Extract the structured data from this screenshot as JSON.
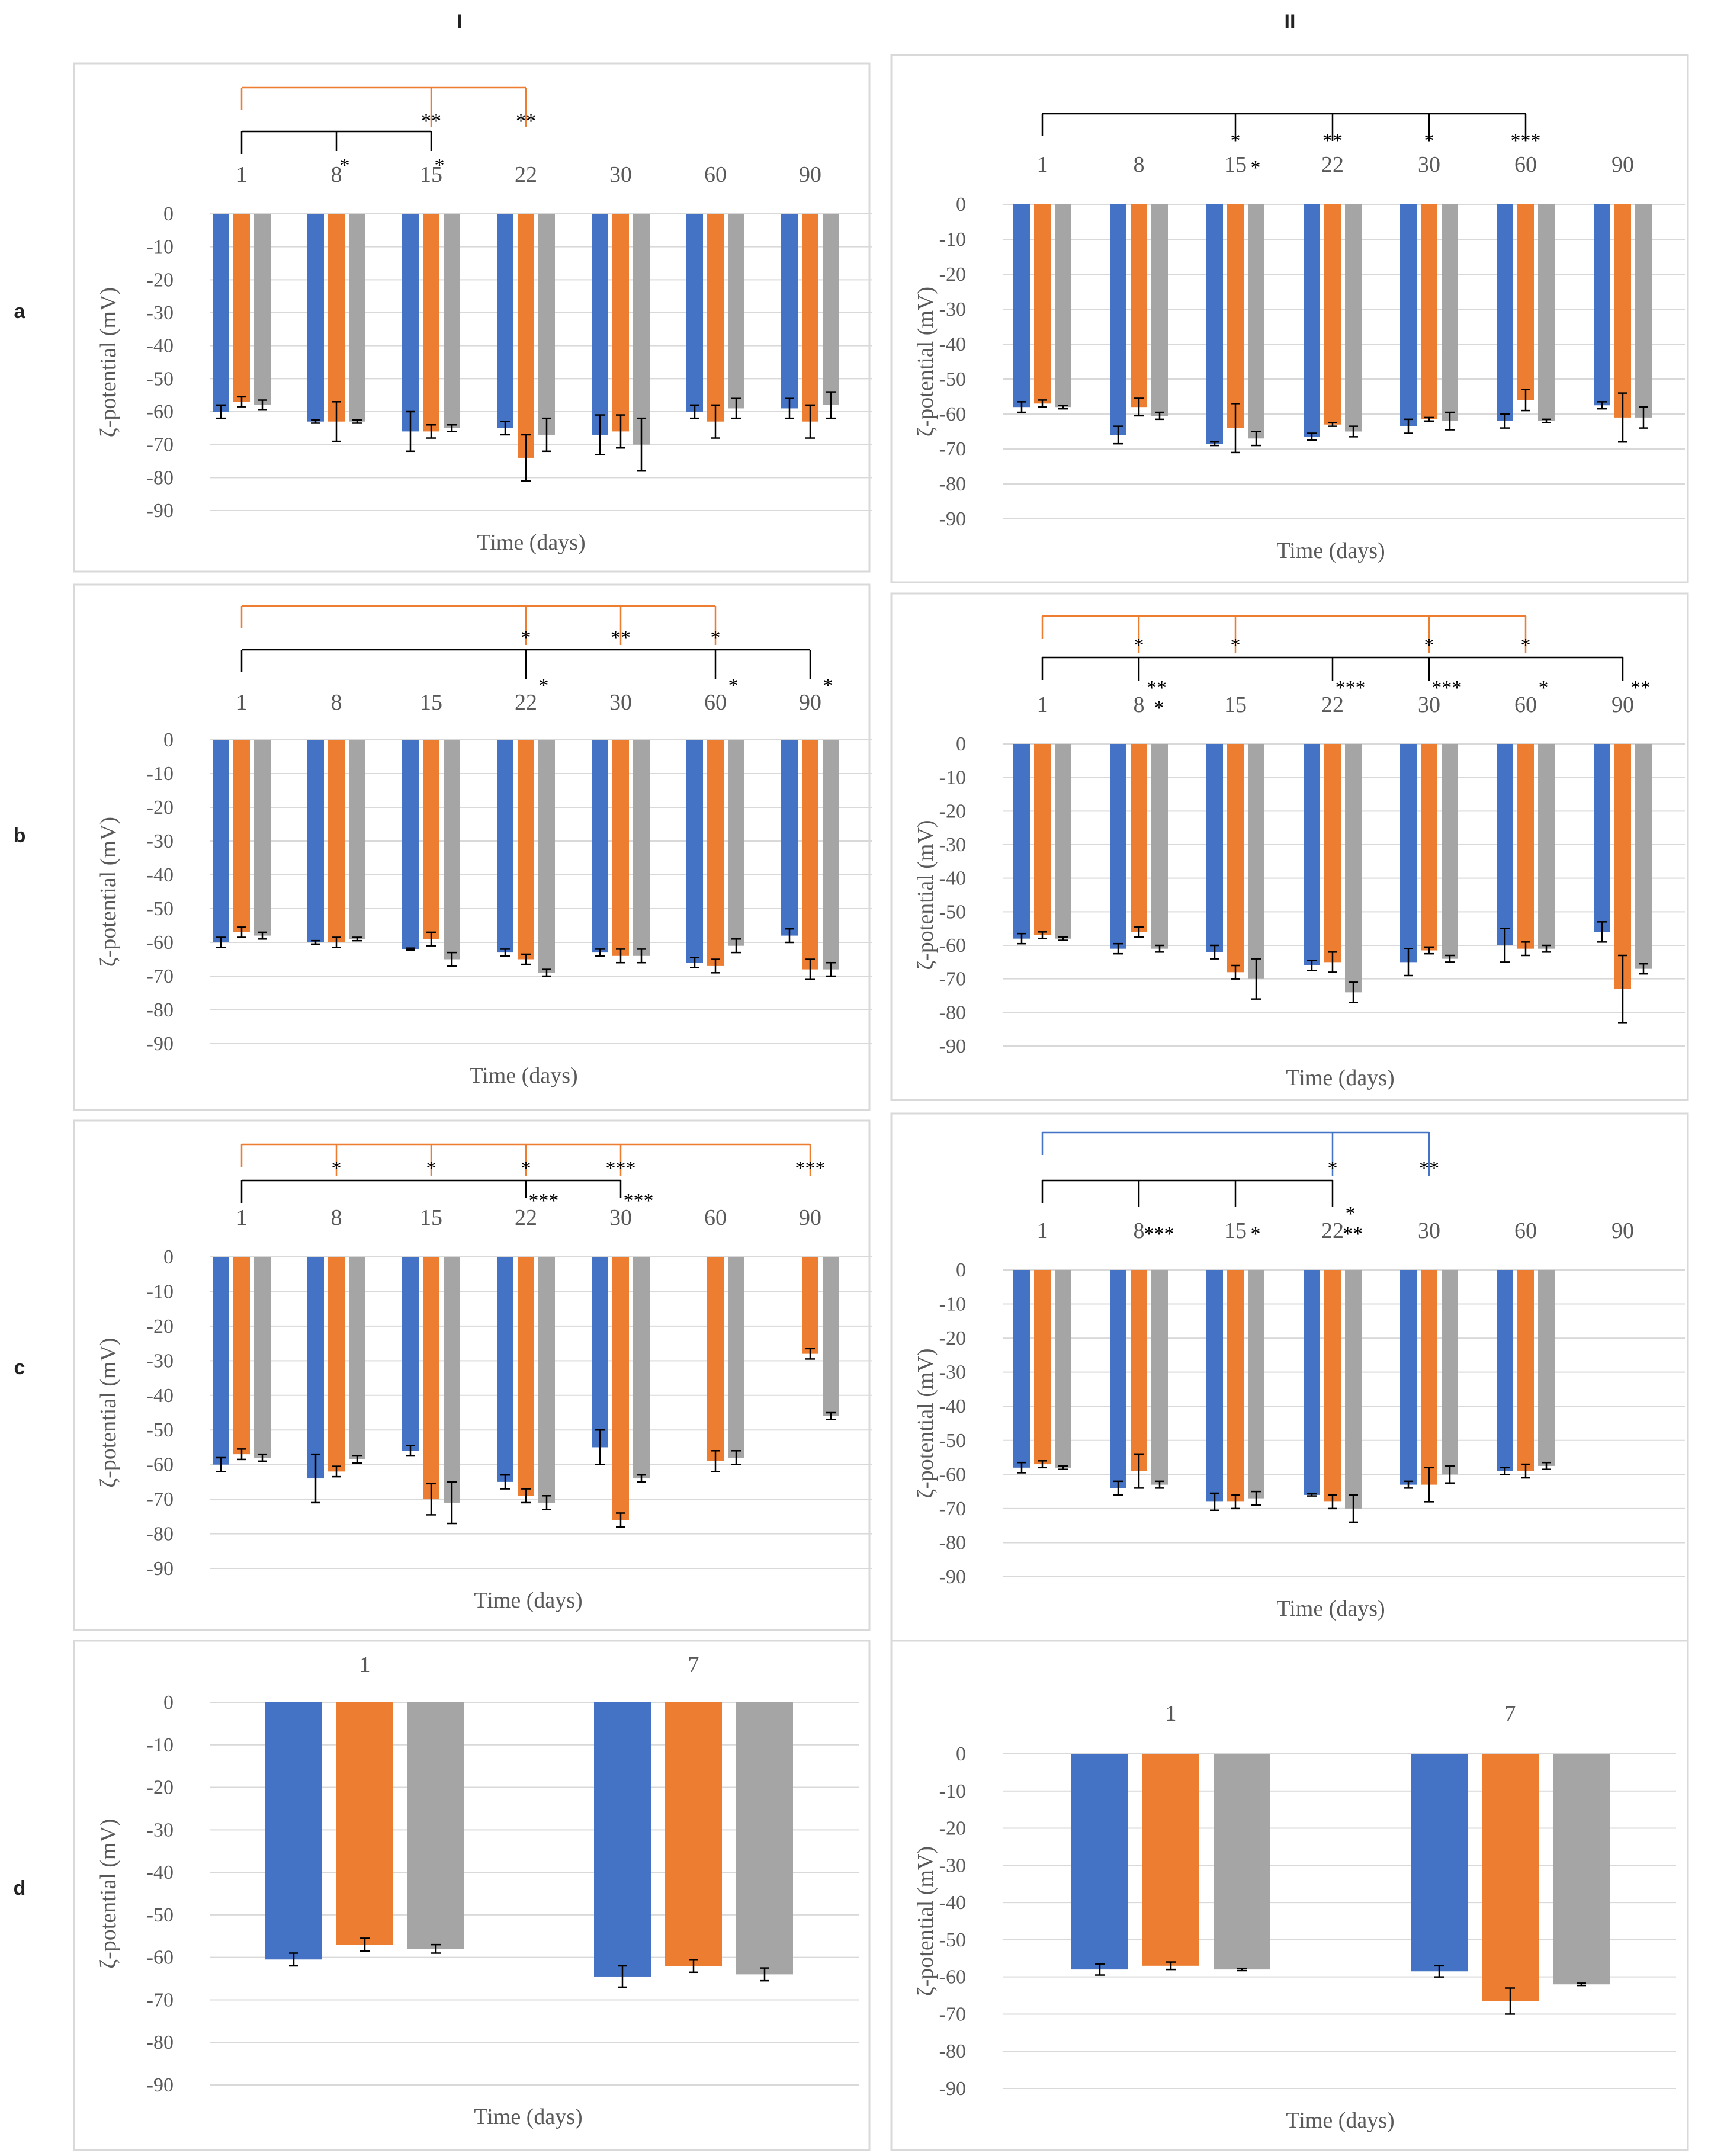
{
  "column_headers": [
    "I",
    "II"
  ],
  "row_labels": [
    "a",
    "b",
    "c",
    "d"
  ],
  "colors": {
    "series1": "#4472C4",
    "series2": "#ED7D31",
    "series3": "#A5A5A5",
    "bracket_black": "#000000",
    "bracket_orange": "#ED7D31",
    "bracket_blue": "#4472C4"
  },
  "chart_data": [
    {
      "id": "aI",
      "type": "bar",
      "xlabel": "Time (days)",
      "ylabel": "ζ-potential (mV)",
      "ylim": [
        -90,
        0
      ],
      "yticks": [
        0,
        -10,
        -20,
        -30,
        -40,
        -50,
        -60,
        -70,
        -80,
        -90
      ],
      "categories": [
        "1",
        "8",
        "15",
        "22",
        "30",
        "60",
        "90"
      ],
      "series": [
        {
          "values": [
            -60,
            -63,
            -66,
            -65,
            -67,
            -60,
            -59
          ],
          "err": [
            2,
            0.5,
            6,
            2,
            6,
            2,
            3
          ]
        },
        {
          "values": [
            -57,
            -63,
            -66,
            -74,
            -66,
            -63,
            -63
          ],
          "err": [
            1.5,
            6,
            2,
            7,
            5,
            5,
            5
          ]
        },
        {
          "values": [
            -58,
            -63,
            -65,
            -67,
            -70,
            -59,
            -58
          ],
          "err": [
            1.5,
            0.5,
            1,
            5,
            8,
            3,
            4
          ]
        }
      ],
      "brackets": [
        {
          "color": "orange",
          "from": "1",
          "level": 1,
          "drops": [
            "15",
            "22"
          ]
        },
        {
          "color": "black",
          "from": "1",
          "level": 2,
          "drops": [
            "8",
            "15"
          ]
        }
      ],
      "stars": [
        {
          "cat": "15",
          "text": "**",
          "row": "above"
        },
        {
          "cat": "22",
          "text": "**",
          "row": "above"
        },
        {
          "cat": "8",
          "text": "*",
          "row": "below"
        },
        {
          "cat": "15",
          "text": "*",
          "row": "below"
        }
      ]
    },
    {
      "id": "aII",
      "type": "bar",
      "xlabel": "Time (days)",
      "ylabel": "ζ-potential (mV)",
      "ylim": [
        -90,
        0
      ],
      "yticks": [
        0,
        -10,
        -20,
        -30,
        -40,
        -50,
        -60,
        -70,
        -80,
        -90
      ],
      "categories": [
        "1",
        "8",
        "15",
        "22",
        "30",
        "60",
        "90"
      ],
      "series": [
        {
          "values": [
            -58,
            -66,
            -68.5,
            -66.5,
            -63.5,
            -62,
            -57.5
          ],
          "err": [
            1.5,
            2.5,
            0.5,
            1,
            2,
            2,
            1
          ]
        },
        {
          "values": [
            -57,
            -58,
            -64,
            -63,
            -61.5,
            -56,
            -61
          ],
          "err": [
            1,
            2.5,
            7,
            0.5,
            0.5,
            3,
            7
          ]
        },
        {
          "values": [
            -58,
            -60.5,
            -67,
            -65,
            -62,
            -62,
            -61
          ],
          "err": [
            0.5,
            1,
            2,
            1.5,
            2.5,
            0.5,
            3
          ]
        }
      ],
      "brackets": [
        {
          "color": "black",
          "from": "1",
          "level": 1,
          "drops": [
            "15",
            "22",
            "30",
            "60"
          ]
        }
      ],
      "stars": [
        {
          "cat": "15",
          "text": "*",
          "row": "above"
        },
        {
          "cat": "22",
          "text": "**",
          "row": "above"
        },
        {
          "cat": "30",
          "text": "*",
          "row": "above"
        },
        {
          "cat": "60",
          "text": "***",
          "row": "above"
        },
        {
          "cat": "15",
          "text": "*",
          "row": "label"
        }
      ]
    },
    {
      "id": "bI",
      "type": "bar",
      "xlabel": "Time (days)",
      "ylabel": "ζ-potential (mV)",
      "ylim": [
        -90,
        0
      ],
      "yticks": [
        0,
        -10,
        -20,
        -30,
        -40,
        -50,
        -60,
        -70,
        -80,
        -90
      ],
      "categories": [
        "1",
        "8",
        "15",
        "22",
        "30",
        "60",
        "90"
      ],
      "series": [
        {
          "values": [
            -60,
            -60,
            -62,
            -63,
            -63,
            -66,
            -58
          ],
          "err": [
            1.5,
            0.5,
            0.3,
            1,
            1,
            1.5,
            2
          ]
        },
        {
          "values": [
            -57,
            -60,
            -59,
            -65,
            -64,
            -67,
            -68
          ],
          "err": [
            1.5,
            1.5,
            2,
            1.5,
            2,
            2,
            3
          ]
        },
        {
          "values": [
            -58,
            -59,
            -65,
            -69,
            -64,
            -61,
            -68
          ],
          "err": [
            1,
            0.5,
            2,
            1,
            2,
            2,
            2
          ]
        }
      ],
      "brackets": [
        {
          "color": "orange",
          "from": "1",
          "level": 1,
          "drops": [
            "22",
            "30",
            "60"
          ]
        },
        {
          "color": "black",
          "from": "1",
          "level": 2,
          "drops": [
            "22",
            "60",
            "90"
          ]
        }
      ],
      "stars": [
        {
          "cat": "22",
          "text": "*",
          "row": "between"
        },
        {
          "cat": "30",
          "text": "**",
          "row": "between"
        },
        {
          "cat": "60",
          "text": "*",
          "row": "between"
        },
        {
          "cat": "22",
          "text": "*",
          "row": "below"
        },
        {
          "cat": "60",
          "text": "*",
          "row": "below"
        },
        {
          "cat": "90",
          "text": "*",
          "row": "below"
        }
      ]
    },
    {
      "id": "bII",
      "type": "bar",
      "xlabel": "Time (days)",
      "ylabel": "ζ-potential (mV)",
      "ylim": [
        -90,
        0
      ],
      "yticks": [
        0,
        -10,
        -20,
        -30,
        -40,
        -50,
        -60,
        -70,
        -80,
        -90
      ],
      "categories": [
        "1",
        "8",
        "15",
        "22",
        "30",
        "60",
        "90"
      ],
      "series": [
        {
          "values": [
            -58,
            -61,
            -62,
            -66,
            -65,
            -60,
            -56
          ],
          "err": [
            1.5,
            1.5,
            2,
            1.5,
            4,
            5,
            3
          ]
        },
        {
          "values": [
            -57,
            -56,
            -68,
            -65,
            -61.5,
            -61,
            -73
          ],
          "err": [
            1,
            1.5,
            2,
            3,
            1,
            2,
            10
          ]
        },
        {
          "values": [
            -58,
            -61,
            -70,
            -74,
            -64,
            -61,
            -67
          ],
          "err": [
            0.5,
            1,
            6,
            3,
            1,
            1,
            1.5
          ]
        }
      ],
      "brackets": [
        {
          "color": "orange",
          "from": "1",
          "level": 1,
          "drops": [
            "8",
            "15",
            "30",
            "60"
          ]
        },
        {
          "color": "black",
          "from": "1",
          "level": 2,
          "drops": [
            "8",
            "22",
            "30",
            "90"
          ]
        }
      ],
      "stars": [
        {
          "cat": "8",
          "text": "*",
          "row": "between"
        },
        {
          "cat": "15",
          "text": "*",
          "row": "between"
        },
        {
          "cat": "30",
          "text": "*",
          "row": "between"
        },
        {
          "cat": "60",
          "text": "*",
          "row": "between"
        },
        {
          "cat": "8",
          "text": "**",
          "row": "below"
        },
        {
          "cat": "22",
          "text": "***",
          "row": "below"
        },
        {
          "cat": "30",
          "text": "***",
          "row": "below"
        },
        {
          "cat": "60",
          "text": "*",
          "row": "below"
        },
        {
          "cat": "90",
          "text": "**",
          "row": "below"
        },
        {
          "cat": "8",
          "text": "*",
          "row": "label"
        }
      ]
    },
    {
      "id": "cI",
      "type": "bar",
      "xlabel": "Time (days)",
      "ylabel": "ζ-potential (mV)",
      "ylim": [
        -90,
        0
      ],
      "yticks": [
        0,
        -10,
        -20,
        -30,
        -40,
        -50,
        -60,
        -70,
        -80,
        -90
      ],
      "categories": [
        "1",
        "8",
        "15",
        "22",
        "30",
        "60",
        "90"
      ],
      "series": [
        {
          "values": [
            -60,
            -64,
            -56,
            -65,
            -55,
            null,
            null
          ],
          "err": [
            2,
            7,
            1.5,
            2,
            5,
            0,
            0
          ]
        },
        {
          "values": [
            -57,
            -62,
            -70,
            -69,
            -76,
            -59,
            -28
          ],
          "err": [
            1.5,
            1.5,
            4.5,
            2,
            2,
            3,
            1.5
          ]
        },
        {
          "values": [
            -58,
            -58.5,
            -71,
            -71,
            -64,
            -58,
            -46
          ],
          "err": [
            1,
            1,
            6,
            2,
            1,
            2,
            1
          ]
        }
      ],
      "brackets": [
        {
          "color": "orange",
          "from": "1",
          "level": 1,
          "drops": [
            "8",
            "15",
            "22",
            "30",
            "90"
          ]
        },
        {
          "color": "black",
          "from": "1",
          "level": 2,
          "drops": [
            "22",
            "30"
          ]
        }
      ],
      "stars": [
        {
          "cat": "8",
          "text": "*",
          "row": "between"
        },
        {
          "cat": "15",
          "text": "*",
          "row": "between"
        },
        {
          "cat": "22",
          "text": "*",
          "row": "between"
        },
        {
          "cat": "30",
          "text": "***",
          "row": "between"
        },
        {
          "cat": "90",
          "text": "***",
          "row": "between"
        },
        {
          "cat": "22",
          "text": "***",
          "row": "below"
        },
        {
          "cat": "30",
          "text": "***",
          "row": "below"
        }
      ]
    },
    {
      "id": "cII",
      "type": "bar",
      "xlabel": "Time (days)",
      "ylabel": "ζ-potential (mV)",
      "ylim": [
        -90,
        0
      ],
      "yticks": [
        0,
        -10,
        -20,
        -30,
        -40,
        -50,
        -60,
        -70,
        -80,
        -90
      ],
      "categories": [
        "1",
        "8",
        "15",
        "22",
        "30",
        "60",
        "90"
      ],
      "series": [
        {
          "values": [
            -58,
            -64,
            -68,
            -66,
            -63,
            -59,
            null
          ],
          "err": [
            1.5,
            2,
            2.5,
            0.3,
            1,
            1,
            0
          ]
        },
        {
          "values": [
            -57,
            -59,
            -68,
            -68,
            -63,
            -59,
            null
          ],
          "err": [
            1,
            5,
            2,
            2,
            5,
            2,
            0
          ]
        },
        {
          "values": [
            -58,
            -63,
            -67,
            -70,
            -60,
            -57.5,
            null
          ],
          "err": [
            0.5,
            1,
            2,
            4,
            2.5,
            1,
            0
          ]
        }
      ],
      "brackets": [
        {
          "color": "blue",
          "from": "1",
          "level": 1,
          "drops": [
            "22",
            "30"
          ]
        },
        {
          "color": "black",
          "from": "1",
          "level": 2,
          "drops": [
            "8",
            "15",
            "22"
          ]
        }
      ],
      "stars": [
        {
          "cat": "22",
          "text": "*",
          "row": "between"
        },
        {
          "cat": "30",
          "text": "**",
          "row": "between"
        },
        {
          "cat": "22",
          "text": "*",
          "row": "below"
        },
        {
          "cat": "8",
          "text": "***",
          "row": "label"
        },
        {
          "cat": "15",
          "text": "*",
          "row": "label"
        },
        {
          "cat": "22",
          "text": "**",
          "row": "label"
        }
      ]
    },
    {
      "id": "dI",
      "type": "bar",
      "xlabel": "Time (days)",
      "ylabel": "ζ-potential (mV)",
      "ylim": [
        -90,
        0
      ],
      "yticks": [
        0,
        -10,
        -20,
        -30,
        -40,
        -50,
        -60,
        -70,
        -80,
        -90
      ],
      "categories": [
        "1",
        "7"
      ],
      "series": [
        {
          "values": [
            -60.5,
            -64.5
          ],
          "err": [
            1.5,
            2.5
          ]
        },
        {
          "values": [
            -57,
            -62
          ],
          "err": [
            1.5,
            1.5
          ]
        },
        {
          "values": [
            -58,
            -64
          ],
          "err": [
            1,
            1.5
          ]
        }
      ],
      "brackets": [],
      "stars": []
    },
    {
      "id": "dII",
      "type": "bar",
      "xlabel": "Time (days)",
      "ylabel": "ζ-potential (mV)",
      "ylim": [
        -90,
        0
      ],
      "yticks": [
        0,
        -10,
        -20,
        -30,
        -40,
        -50,
        -60,
        -70,
        -80,
        -90
      ],
      "categories": [
        "1",
        "7"
      ],
      "series": [
        {
          "values": [
            -58,
            -58.5
          ],
          "err": [
            1.5,
            1.5
          ]
        },
        {
          "values": [
            -57,
            -66.5
          ],
          "err": [
            1,
            3.5
          ]
        },
        {
          "values": [
            -58,
            -62
          ],
          "err": [
            0.3,
            0.3
          ]
        }
      ],
      "brackets": [],
      "stars": []
    }
  ]
}
